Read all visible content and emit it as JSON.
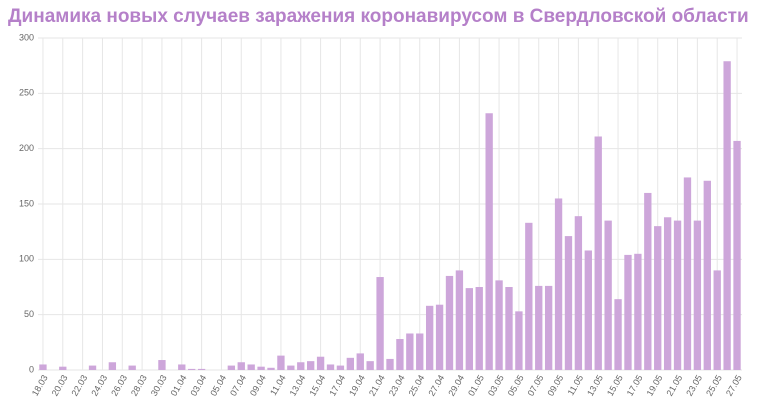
{
  "chart_data": {
    "type": "bar",
    "title": "Динамика новых случаев заражения коронавирусом в Свердловской области",
    "categories": [
      "18.03",
      null,
      "20.03",
      null,
      "22.03",
      null,
      "24.03",
      null,
      "26.03",
      null,
      "28.03",
      null,
      "30.03",
      null,
      "01.04",
      null,
      "03.04",
      null,
      "05.04",
      null,
      "07.04",
      null,
      "09.04",
      null,
      "11.04",
      null,
      "13.04",
      null,
      "15.04",
      null,
      "17.04",
      null,
      "19.04",
      null,
      "21.04",
      null,
      "23.04",
      null,
      "25.04",
      null,
      "27.04",
      null,
      "29.04",
      null,
      "01.05",
      null,
      "03.05",
      null,
      "05.05",
      null,
      "07.05",
      null,
      "09.05",
      null,
      "11.05",
      null,
      "13.05",
      null,
      "15.05",
      null,
      "17.05",
      null,
      "19.05",
      null,
      "21.05",
      null,
      "23.05",
      null,
      "25.05",
      null,
      "27.05"
    ],
    "values": [
      5,
      0,
      3,
      0,
      0,
      4,
      0,
      7,
      0,
      4,
      0,
      0,
      9,
      0,
      5,
      1,
      1,
      0,
      0,
      4,
      7,
      5,
      3,
      2,
      13,
      4,
      7,
      8,
      12,
      5,
      4,
      11,
      15,
      8,
      84,
      10,
      28,
      33,
      33,
      58,
      59,
      85,
      90,
      74,
      75,
      232,
      81,
      75,
      53,
      133,
      76,
      76,
      155,
      121,
      139,
      108,
      211,
      135,
      64,
      104,
      105,
      160,
      130,
      138,
      135,
      174,
      135,
      171,
      90,
      279,
      207
    ],
    "color": "#cda6da",
    "ylim": [
      0,
      300
    ],
    "yticks": [
      0,
      50,
      100,
      150,
      200,
      250,
      300
    ],
    "grid": true
  }
}
